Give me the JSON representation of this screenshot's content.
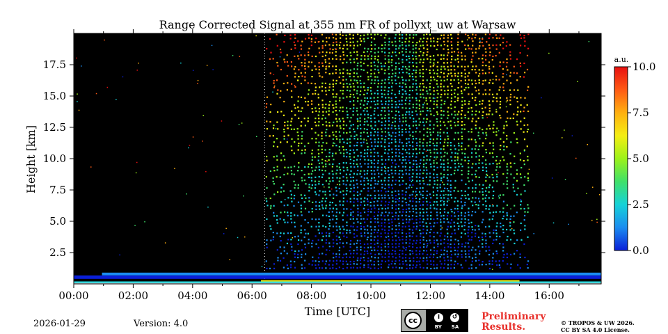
{
  "chart_data": {
    "type": "heatmap",
    "title": "Range Corrected Signal at 355 nm FR of pollyxt_uw at Warsaw",
    "xlabel": "Time [UTC]",
    "ylabel": "Height [km]",
    "xlim": [
      0,
      17.75
    ],
    "ylim": [
      0,
      20
    ],
    "x_ticks": [
      0,
      2,
      4,
      6,
      8,
      10,
      12,
      14,
      16
    ],
    "x_tick_labels": [
      "00:00",
      "02:00",
      "04:00",
      "06:00",
      "08:00",
      "10:00",
      "12:00",
      "14:00",
      "16:00"
    ],
    "y_ticks": [
      2.5,
      5.0,
      7.5,
      10.0,
      12.5,
      15.0,
      17.5
    ],
    "y_tick_labels": [
      "2.5",
      "5.0",
      "7.5",
      "10.0",
      "12.5",
      "15.0",
      "17.5"
    ],
    "colorbar": {
      "unit": "a.u.",
      "range": [
        0,
        10
      ],
      "ticks": [
        0,
        2.5,
        5,
        7.5,
        10
      ],
      "tick_labels": [
        "0.0",
        "2.5",
        "5.0",
        "7.5",
        "10.0"
      ],
      "colors": [
        "#0a1fd8",
        "#1b8cf0",
        "#16d2d8",
        "#3fe06a",
        "#9cf21a",
        "#f4ee14",
        "#ffb010",
        "#ff5a14",
        "#e81010"
      ]
    },
    "signal_window_hours": [
      6.45,
      15.25
    ],
    "boundary_layer_top_km": 0.9,
    "background_color": "#000000"
  },
  "footer": {
    "date": "2026-01-29",
    "version": "Version: 4.0",
    "preliminary": "Preliminary Results.",
    "copyright_line1": "© TROPOS & UW 2026.",
    "copyright_line2": "CC BY SA 4.0 License.",
    "license_badge": {
      "cc": "cc",
      "by": "BY",
      "sa": "SA"
    }
  }
}
